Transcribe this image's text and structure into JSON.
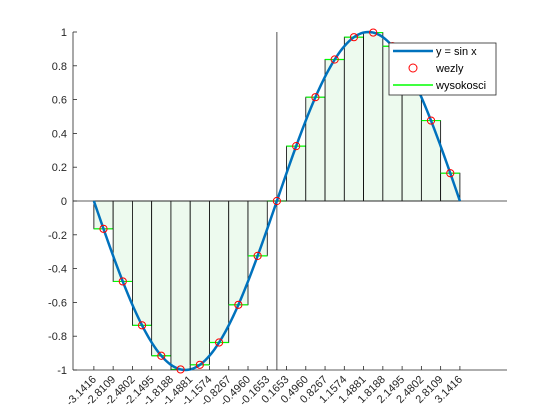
{
  "chart_data": {
    "type": "line",
    "title": "",
    "xlabel": "",
    "ylabel": "",
    "xlim": [
      -3.5,
      3.95
    ],
    "ylim": [
      -1,
      1
    ],
    "yticks": [
      -1,
      -0.8,
      -0.6,
      -0.4,
      -0.2,
      0,
      0.2,
      0.4,
      0.6,
      0.8,
      1
    ],
    "ytick_labels": [
      "-1",
      "-0.8",
      "-0.6",
      "-0.4",
      "-0.2",
      "0",
      "0.2",
      "0.4",
      "0.6",
      "0.8",
      "1"
    ],
    "xticks": [
      -3.1416,
      -2.8109,
      -2.4802,
      -2.1495,
      -1.8188,
      -1.4881,
      -1.1574,
      -0.8267,
      -0.496,
      -0.1653,
      0.1653,
      0.496,
      0.8267,
      1.1574,
      1.4881,
      1.8188,
      2.1495,
      2.4802,
      2.8109,
      3.1416
    ],
    "xtick_labels": [
      "-3.1416",
      "-2.8109",
      "-2.4802",
      "-2.1495",
      "-1.8188",
      "-1.4881",
      "-1.1574",
      "-0.8267",
      "-0.4960",
      "-0.1653",
      "0.1653",
      "0.4960",
      "0.8267",
      "1.1574",
      "1.4881",
      "1.8188",
      "2.1495",
      "2.4802",
      "2.8109",
      "3.1416"
    ],
    "series": [
      {
        "name": "y = sin x",
        "kind": "curve",
        "function": "sin",
        "x_range": [
          -3.1416,
          3.1416
        ],
        "color": "#0072BD"
      },
      {
        "name": "wezly",
        "kind": "markers",
        "marker": "circle",
        "color": "#FF0000",
        "x": [
          -2.9762,
          -2.6456,
          -2.3149,
          -1.9842,
          -1.6535,
          -1.3228,
          -0.9921,
          -0.6614,
          -0.3307,
          0.0,
          0.3307,
          0.6614,
          0.9921,
          1.3228,
          1.6535,
          1.9842,
          2.3149,
          2.6456,
          2.9762
        ],
        "y": [
          -0.1646,
          -0.4759,
          -0.7357,
          -0.9158,
          -0.9966,
          -0.9694,
          -0.8372,
          -0.6142,
          -0.3247,
          0.0,
          0.3247,
          0.6142,
          0.8372,
          0.9694,
          0.9966,
          0.9158,
          0.7357,
          0.4759,
          0.1646
        ]
      },
      {
        "name": "wysokosci",
        "kind": "bars",
        "color": "#00FF00",
        "fill": "#EDFAEE",
        "edges": [
          -3.1416,
          -2.8109,
          -2.4802,
          -2.1495,
          -1.8188,
          -1.4881,
          -1.1574,
          -0.8267,
          -0.496,
          -0.1653,
          0.1653,
          0.496,
          0.8267,
          1.1574,
          1.4881,
          1.8188,
          2.1495,
          2.4802,
          2.8109,
          3.1416
        ],
        "values": [
          -0.1646,
          -0.4759,
          -0.7357,
          -0.9158,
          -0.9966,
          -0.9694,
          -0.8372,
          -0.6142,
          -0.3247,
          0.0,
          0.3247,
          0.6142,
          0.8372,
          0.9694,
          0.9966,
          0.9158,
          0.7357,
          0.4759,
          0.1646
        ]
      }
    ],
    "legend": {
      "placement": "top-right",
      "entries": [
        "y = sin x",
        "wezly",
        "wysokosci"
      ]
    },
    "grid": false,
    "axis_lines_at_zero": true
  }
}
